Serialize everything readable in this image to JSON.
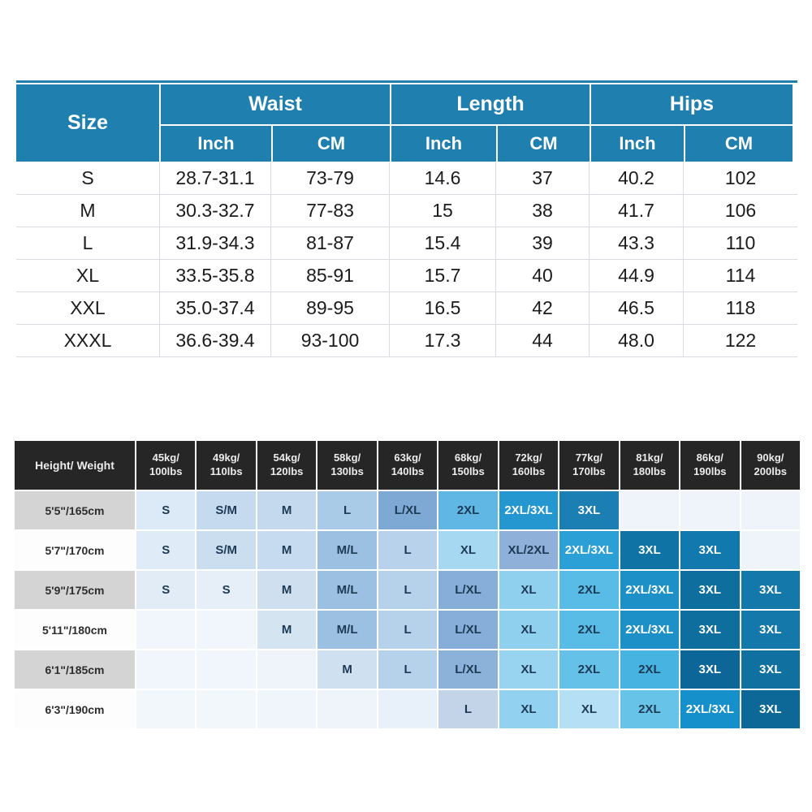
{
  "colors": {
    "header_blue": "#1f7fae",
    "header_dark": "#262626",
    "grid_line": "#d9dde2",
    "label_gray": "#d4d4d4",
    "label_white": "#fdfdfd",
    "empty_cell": "#eef4fa",
    "background": "#ffffff"
  },
  "size_chart": {
    "corner": "Size",
    "unit_inch": "Inch",
    "unit_cm": "CM",
    "groups": [
      {
        "label": "Waist"
      },
      {
        "label": "Length"
      },
      {
        "label": "Hips"
      }
    ],
    "rows": [
      {
        "size": "S",
        "cells": [
          "28.7-31.1",
          "73-79",
          "14.6",
          "37",
          "40.2",
          "102"
        ]
      },
      {
        "size": "M",
        "cells": [
          "30.3-32.7",
          "77-83",
          "15",
          "38",
          "41.7",
          "106"
        ]
      },
      {
        "size": "L",
        "cells": [
          "31.9-34.3",
          "81-87",
          "15.4",
          "39",
          "43.3",
          "110"
        ]
      },
      {
        "size": "XL",
        "cells": [
          "33.5-35.8",
          "85-91",
          "15.7",
          "40",
          "44.9",
          "114"
        ]
      },
      {
        "size": "XXL",
        "cells": [
          "35.0-37.4",
          "89-95",
          "16.5",
          "42",
          "46.5",
          "118"
        ]
      },
      {
        "size": "XXXL",
        "cells": [
          "36.6-39.4",
          "93-100",
          "17.3",
          "44",
          "48.0",
          "122"
        ]
      }
    ]
  },
  "fit_matrix": {
    "corner": "Height/ Weight",
    "weight_headers": [
      {
        "top": "45kg/",
        "bottom": "100lbs"
      },
      {
        "top": "49kg/",
        "bottom": "110lbs"
      },
      {
        "top": "54kg/",
        "bottom": "120lbs"
      },
      {
        "top": "58kg/",
        "bottom": "130lbs"
      },
      {
        "top": "63kg/",
        "bottom": "140lbs"
      },
      {
        "top": "68kg/",
        "bottom": "150lbs"
      },
      {
        "top": "72kg/",
        "bottom": "160lbs"
      },
      {
        "top": "77kg/",
        "bottom": "170lbs"
      },
      {
        "top": "81kg/",
        "bottom": "180lbs"
      },
      {
        "top": "86kg/",
        "bottom": "190lbs"
      },
      {
        "top": "90kg/",
        "bottom": "200lbs"
      }
    ],
    "rows": [
      {
        "label": "5'5\"/165cm",
        "label_bg": "#d4d4d4",
        "cells": [
          {
            "t": "S",
            "bg": "#dce9f6"
          },
          {
            "t": "S/M",
            "bg": "#c6daef"
          },
          {
            "t": "M",
            "bg": "#c4d9ee"
          },
          {
            "t": "L",
            "bg": "#aacbe8"
          },
          {
            "t": "L/XL",
            "bg": "#7fa9d5"
          },
          {
            "t": "2XL",
            "bg": "#61b7e4"
          },
          {
            "t": "2XL/3XL",
            "bg": "#2597d0",
            "fg": "#ffffff"
          },
          {
            "t": "3XL",
            "bg": "#1b7fb3",
            "fg": "#ffffff"
          },
          {
            "t": "",
            "bg": "#eef4fa"
          },
          {
            "t": "",
            "bg": "#eef4fa"
          },
          {
            "t": "",
            "bg": "#eef4fa"
          }
        ]
      },
      {
        "label": "5'7\"/170cm",
        "label_bg": "#fdfdfd",
        "cells": [
          {
            "t": "S",
            "bg": "#dfebf6"
          },
          {
            "t": "S/M",
            "bg": "#cadef0"
          },
          {
            "t": "M",
            "bg": "#c6dbef"
          },
          {
            "t": "M/L",
            "bg": "#9cc0e2"
          },
          {
            "t": "L",
            "bg": "#b7d2ea"
          },
          {
            "t": "XL",
            "bg": "#a6d8f2"
          },
          {
            "t": "XL/2XL",
            "bg": "#8fb0d8"
          },
          {
            "t": "2XL/3XL",
            "bg": "#2aa0d7",
            "fg": "#ffffff"
          },
          {
            "t": "3XL",
            "bg": "#0f73a6",
            "fg": "#ffffff"
          },
          {
            "t": "3XL",
            "bg": "#1179ad",
            "fg": "#ffffff"
          },
          {
            "t": "",
            "bg": "#eef4fa"
          }
        ]
      },
      {
        "label": "5'9\"/175cm",
        "label_bg": "#d4d4d4",
        "cells": [
          {
            "t": "S",
            "bg": "#e2ecf7"
          },
          {
            "t": "S",
            "bg": "#e6eff8"
          },
          {
            "t": "M",
            "bg": "#cfdfef"
          },
          {
            "t": "M/L",
            "bg": "#9cc0e2"
          },
          {
            "t": "L",
            "bg": "#b6d2ea"
          },
          {
            "t": "L/XL",
            "bg": "#86aed9"
          },
          {
            "t": "XL",
            "bg": "#8fd0ef"
          },
          {
            "t": "2XL",
            "bg": "#58bce7"
          },
          {
            "t": "2XL/3XL",
            "bg": "#1e90c8",
            "fg": "#ffffff"
          },
          {
            "t": "3XL",
            "bg": "#0e6f9f",
            "fg": "#ffffff"
          },
          {
            "t": "3XL",
            "bg": "#1578ab",
            "fg": "#ffffff"
          }
        ]
      },
      {
        "label": "5'11\"/180cm",
        "label_bg": "#fdfdfd",
        "cells": [
          {
            "t": "",
            "bg": "#f0f6fb"
          },
          {
            "t": "",
            "bg": "#f0f6fb"
          },
          {
            "t": "M",
            "bg": "#d5e4f1"
          },
          {
            "t": "M/L",
            "bg": "#9cc0e2"
          },
          {
            "t": "L",
            "bg": "#b6d2ea"
          },
          {
            "t": "L/XL",
            "bg": "#86aed9"
          },
          {
            "t": "XL",
            "bg": "#8fd0ef"
          },
          {
            "t": "2XL",
            "bg": "#58bce7"
          },
          {
            "t": "2XL/3XL",
            "bg": "#1e90c8",
            "fg": "#ffffff"
          },
          {
            "t": "3XL",
            "bg": "#0e6f9f",
            "fg": "#ffffff"
          },
          {
            "t": "3XL",
            "bg": "#1578ab",
            "fg": "#ffffff"
          }
        ]
      },
      {
        "label": "6'1\"/185cm",
        "label_bg": "#d4d4d4",
        "cells": [
          {
            "t": "",
            "bg": "#f0f6fb"
          },
          {
            "t": "",
            "bg": "#f0f6fb"
          },
          {
            "t": "",
            "bg": "#eef4fa"
          },
          {
            "t": "M",
            "bg": "#cfe0f0"
          },
          {
            "t": "L",
            "bg": "#b6d2ea"
          },
          {
            "t": "L/XL",
            "bg": "#8cb2da"
          },
          {
            "t": "XL",
            "bg": "#98d3f0"
          },
          {
            "t": "2XL",
            "bg": "#65c1e8"
          },
          {
            "t": "2XL",
            "bg": "#47b3e1"
          },
          {
            "t": "3XL",
            "bg": "#0c6697",
            "fg": "#ffffff"
          },
          {
            "t": "3XL",
            "bg": "#10709f",
            "fg": "#ffffff"
          }
        ]
      },
      {
        "label": "6'3\"/190cm",
        "label_bg": "#fdfdfd",
        "cells": [
          {
            "t": "",
            "bg": "#f2f7fc"
          },
          {
            "t": "",
            "bg": "#f2f7fc"
          },
          {
            "t": "",
            "bg": "#f0f5fb"
          },
          {
            "t": "",
            "bg": "#eef4fa"
          },
          {
            "t": "",
            "bg": "#e8f1f9"
          },
          {
            "t": "L",
            "bg": "#c3d4e9"
          },
          {
            "t": "XL",
            "bg": "#92d1ef"
          },
          {
            "t": "XL",
            "bg": "#b4dff5"
          },
          {
            "t": "2XL",
            "bg": "#68c3e9"
          },
          {
            "t": "2XL/3XL",
            "bg": "#1590cb",
            "fg": "#ffffff"
          },
          {
            "t": "3XL",
            "bg": "#0d6898",
            "fg": "#ffffff"
          }
        ]
      }
    ]
  },
  "chart_data": [
    {
      "type": "table",
      "title": "Garment size chart",
      "columns": [
        "Size",
        "Waist Inch",
        "Waist CM",
        "Length Inch",
        "Length CM",
        "Hips Inch",
        "Hips CM"
      ],
      "rows": [
        [
          "S",
          "28.7-31.1",
          "73-79",
          "14.6",
          "37",
          "40.2",
          "102"
        ],
        [
          "M",
          "30.3-32.7",
          "77-83",
          "15",
          "38",
          "41.7",
          "106"
        ],
        [
          "L",
          "31.9-34.3",
          "81-87",
          "15.4",
          "39",
          "43.3",
          "110"
        ],
        [
          "XL",
          "33.5-35.8",
          "85-91",
          "15.7",
          "40",
          "44.9",
          "114"
        ],
        [
          "XXL",
          "35.0-37.4",
          "89-95",
          "16.5",
          "42",
          "46.5",
          "118"
        ],
        [
          "XXXL",
          "36.6-39.4",
          "93-100",
          "17.3",
          "44",
          "48.0",
          "122"
        ]
      ]
    },
    {
      "type": "table",
      "title": "Height/Weight size matrix",
      "columns": [
        "Height/ Weight",
        "45kg/100lbs",
        "49kg/110lbs",
        "54kg/120lbs",
        "58kg/130lbs",
        "63kg/140lbs",
        "68kg/150lbs",
        "72kg/160lbs",
        "77kg/170lbs",
        "81kg/180lbs",
        "86kg/190lbs",
        "90kg/200lbs"
      ],
      "rows": [
        [
          "5'5\"/165cm",
          "S",
          "S/M",
          "M",
          "L",
          "L/XL",
          "2XL",
          "2XL/3XL",
          "3XL",
          "",
          "",
          ""
        ],
        [
          "5'7\"/170cm",
          "S",
          "S/M",
          "M",
          "M/L",
          "L",
          "XL",
          "XL/2XL",
          "2XL/3XL",
          "3XL",
          "3XL",
          ""
        ],
        [
          "5'9\"/175cm",
          "S",
          "S",
          "M",
          "M/L",
          "L",
          "L/XL",
          "XL",
          "2XL",
          "2XL/3XL",
          "3XL",
          "3XL"
        ],
        [
          "5'11\"/180cm",
          "",
          "",
          "M",
          "M/L",
          "L",
          "L/XL",
          "XL",
          "2XL",
          "2XL/3XL",
          "3XL",
          "3XL"
        ],
        [
          "6'1\"/185cm",
          "",
          "",
          "",
          "M",
          "L",
          "L/XL",
          "XL",
          "2XL",
          "2XL",
          "3XL",
          "3XL"
        ],
        [
          "6'3\"/190cm",
          "",
          "",
          "",
          "",
          "",
          "L",
          "XL",
          "XL",
          "2XL",
          "2XL/3XL",
          "3XL"
        ]
      ]
    }
  ]
}
